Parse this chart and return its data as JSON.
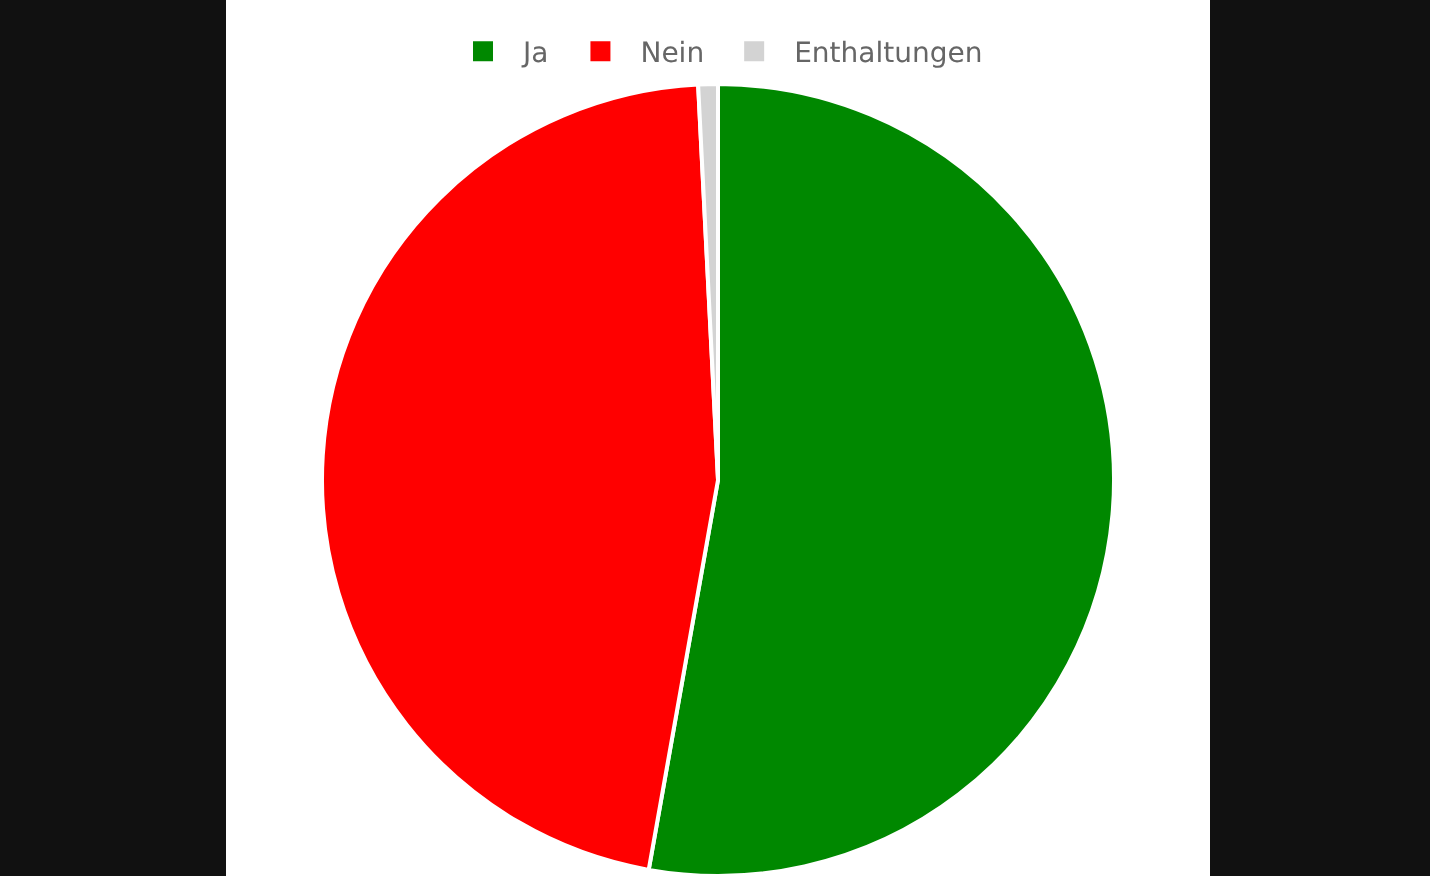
{
  "chart_data": {
    "type": "pie",
    "categories": [
      "Ja",
      "Nein",
      "Enthaltungen"
    ],
    "values": [
      52.8,
      46.4,
      0.8
    ],
    "colors": [
      "#008800",
      "#ff0000",
      "#d3d3d3"
    ],
    "legend": "top"
  }
}
